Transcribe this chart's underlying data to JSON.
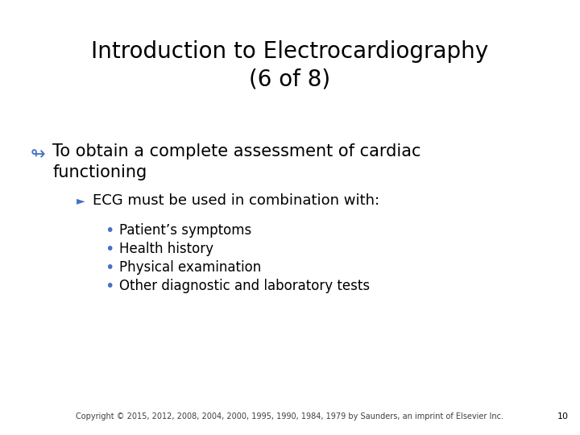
{
  "title_line1": "Introduction to Electrocardiography",
  "title_line2": "(6 of 8)",
  "title_fontsize": 20,
  "title_color": "#000000",
  "bg_color": "#ffffff",
  "bullet1_symbol": "↬",
  "bullet1_text_line1": "To obtain a complete assessment of cardiac",
  "bullet1_text_line2": "functioning",
  "bullet1_fontsize": 15,
  "bullet1_color": "#000000",
  "bullet1_symbol_color": "#4472C4",
  "sub_bullet_symbol": "►",
  "sub_bullet_text": "ECG must be used in combination with:",
  "sub_bullet_fontsize": 13,
  "sub_bullet_color": "#000000",
  "sub_bullet_symbol_color": "#4472C4",
  "items": [
    "Patient’s symptoms",
    "Health history",
    "Physical examination",
    "Other diagnostic and laboratory tests"
  ],
  "item_fontsize": 12,
  "item_color": "#000000",
  "item_bullet_color": "#4472C4",
  "footer_text": "Copyright © 2015, 2012, 2008, 2004, 2000, 1995, 1990, 1984, 1979 by Saunders, an imprint of Elsevier Inc.",
  "footer_fontsize": 7,
  "footer_color": "#404040",
  "page_number": "10",
  "page_number_fontsize": 8,
  "page_number_color": "#000000"
}
